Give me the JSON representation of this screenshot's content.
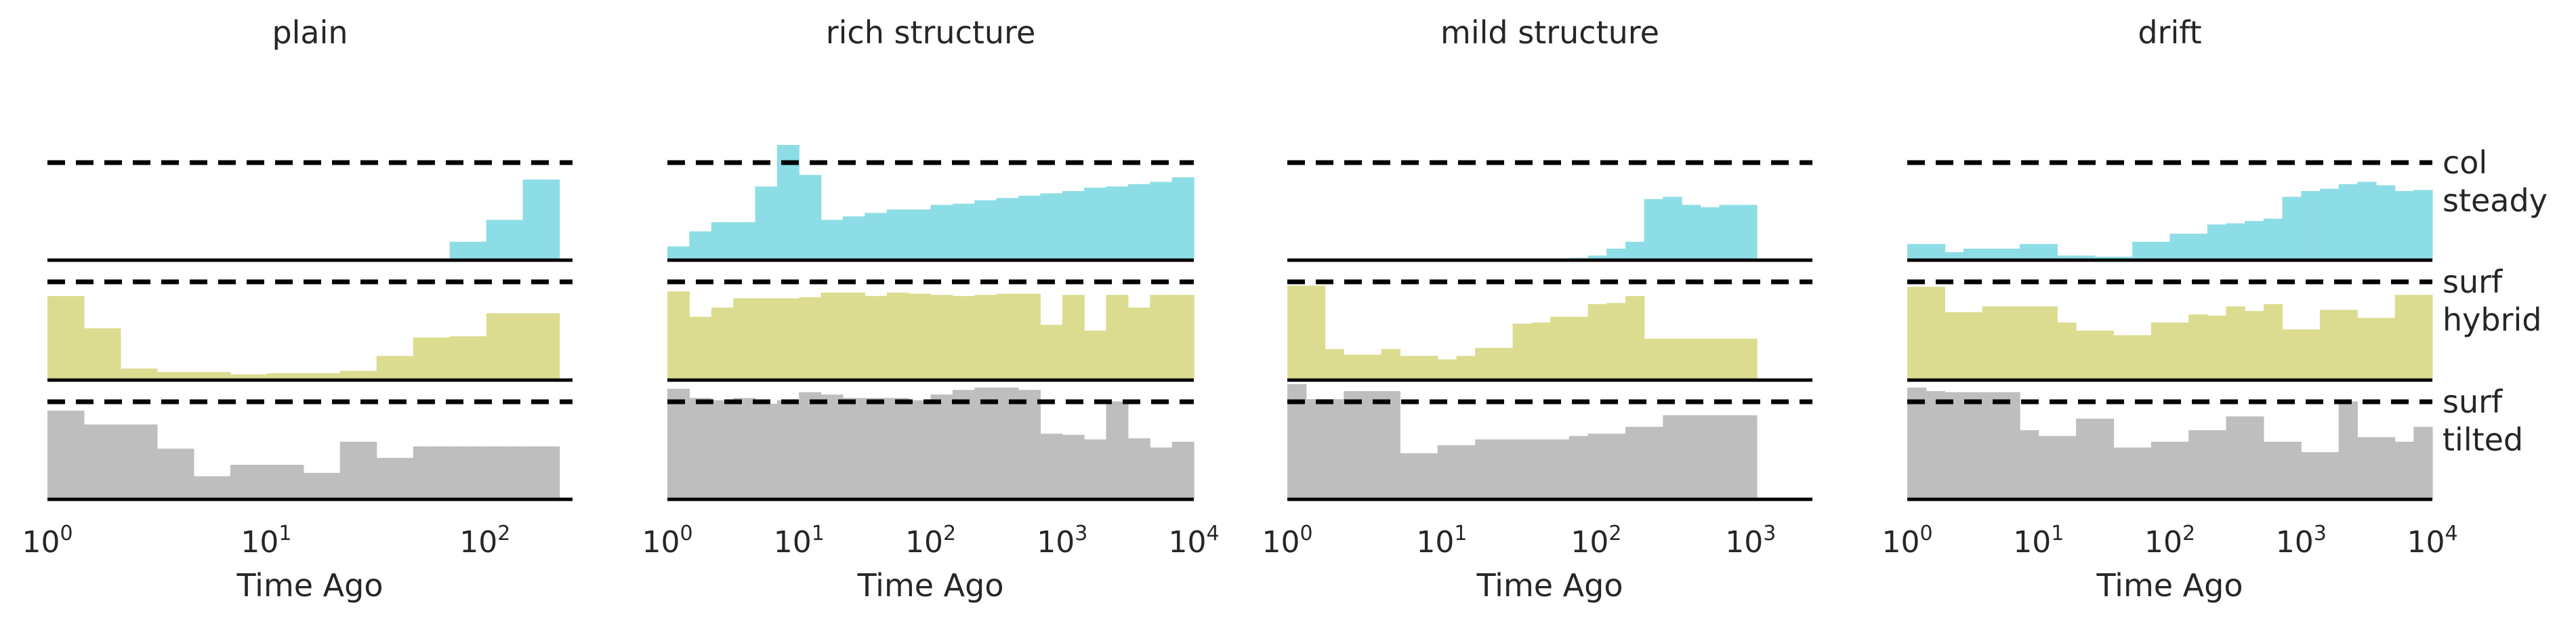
{
  "chart_data": [
    {
      "type": "histogram",
      "title": "plain",
      "xlabel": "Time Ago",
      "xscale": "log",
      "xlim_exp": [
        0,
        2.4
      ],
      "ticks": [
        {
          "base": "10",
          "exp": "0"
        },
        {
          "base": "10",
          "exp": "1"
        },
        {
          "base": "10",
          "exp": "2"
        }
      ],
      "bin_edges_exp": [
        0,
        0.3,
        0.6,
        0.9,
        1.2,
        1.5,
        1.8,
        2.1,
        2.4
      ],
      "hist_edge_exp": 2.34,
      "series": [
        {
          "name": "steady",
          "color": "#8ddde6",
          "values": [
            0,
            0,
            0,
            0,
            0,
            0,
            0,
            0,
            0,
            0,
            0,
            0,
            0,
            0,
            0,
            0,
            0,
            0,
            0,
            0,
            0,
            0,
            0.16,
            0.16,
            0.35,
            0.35,
            0.7,
            0.7
          ]
        },
        {
          "name": "hybrid",
          "color": "#dcdc90",
          "values": [
            0.73,
            0.73,
            0.45,
            0.45,
            0.1,
            0.1,
            0.07,
            0.07,
            0.07,
            0.07,
            0.05,
            0.05,
            0.06,
            0.06,
            0.06,
            0.06,
            0.08,
            0.08,
            0.21,
            0.21,
            0.37,
            0.37,
            0.38,
            0.38,
            0.58,
            0.58,
            0.58,
            0.58
          ]
        },
        {
          "name": "tilted",
          "color": "#bebebe",
          "values": [
            0.77,
            0.77,
            0.65,
            0.65,
            0.65,
            0.65,
            0.44,
            0.44,
            0.2,
            0.2,
            0.3,
            0.3,
            0.3,
            0.3,
            0.23,
            0.23,
            0.5,
            0.5,
            0.36,
            0.36,
            0.46,
            0.46,
            0.46,
            0.46,
            0.46,
            0.46,
            0.46,
            0.46
          ]
        }
      ]
    },
    {
      "type": "histogram",
      "title": "rich structure",
      "xlabel": "Time Ago",
      "xscale": "log",
      "xlim_exp": [
        0,
        4
      ],
      "ticks": [
        {
          "base": "10",
          "exp": "0"
        },
        {
          "base": "10",
          "exp": "1"
        },
        {
          "base": "10",
          "exp": "2"
        },
        {
          "base": "10",
          "exp": "3"
        },
        {
          "base": "10",
          "exp": "4"
        }
      ],
      "bin_edges_exp": [
        0,
        1,
        2,
        3,
        4
      ],
      "hist_edge_exp": 4,
      "series": [
        {
          "name": "steady",
          "color": "#8ddde6",
          "values": [
            0.12,
            0.25,
            0.33,
            0.33,
            0.64,
            1.0,
            0.74,
            0.35,
            0.38,
            0.41,
            0.44,
            0.44,
            0.48,
            0.49,
            0.52,
            0.54,
            0.56,
            0.58,
            0.6,
            0.63,
            0.64,
            0.66,
            0.68,
            0.72
          ]
        },
        {
          "name": "hybrid",
          "color": "#dcdc90",
          "values": [
            0.77,
            0.55,
            0.63,
            0.71,
            0.71,
            0.71,
            0.72,
            0.76,
            0.76,
            0.73,
            0.76,
            0.75,
            0.74,
            0.73,
            0.74,
            0.75,
            0.75,
            0.48,
            0.74,
            0.43,
            0.74,
            0.63,
            0.74,
            0.74
          ]
        },
        {
          "name": "tilted",
          "color": "#bebebe",
          "values": [
            0.96,
            0.88,
            0.86,
            0.88,
            0.83,
            0.86,
            0.93,
            0.91,
            0.88,
            0.88,
            0.88,
            0.86,
            0.91,
            0.95,
            0.97,
            0.97,
            0.95,
            0.57,
            0.56,
            0.52,
            0.85,
            0.53,
            0.45,
            0.5
          ]
        }
      ]
    },
    {
      "type": "histogram",
      "title": "mild structure",
      "xlabel": "Time Ago",
      "xscale": "log",
      "xlim_exp": [
        0,
        3.4
      ],
      "ticks": [
        {
          "base": "10",
          "exp": "0"
        },
        {
          "base": "10",
          "exp": "1"
        },
        {
          "base": "10",
          "exp": "2"
        },
        {
          "base": "10",
          "exp": "3"
        }
      ],
      "bin_edges_exp": [
        0,
        1,
        2,
        3
      ],
      "hist_edge_exp": 3.04,
      "series": [
        {
          "name": "steady",
          "color": "#8ddde6",
          "values": [
            0,
            0,
            0,
            0,
            0,
            0,
            0,
            0,
            0,
            0,
            0,
            0,
            0,
            0,
            0,
            0.02,
            0.04,
            0.1,
            0.16,
            0.53,
            0.55,
            0.48,
            0.46,
            0.48,
            0.48
          ]
        },
        {
          "name": "hybrid",
          "color": "#dcdc90",
          "values": [
            0.82,
            0.82,
            0.27,
            0.22,
            0.22,
            0.27,
            0.21,
            0.21,
            0.18,
            0.21,
            0.28,
            0.28,
            0.49,
            0.5,
            0.55,
            0.55,
            0.66,
            0.67,
            0.73,
            0.36,
            0.36,
            0.36,
            0.36,
            0.36,
            0.36
          ]
        },
        {
          "name": "tilted",
          "color": "#bebebe",
          "values": [
            1.0,
            0.87,
            0.87,
            0.94,
            0.94,
            0.94,
            0.4,
            0.4,
            0.47,
            0.47,
            0.52,
            0.52,
            0.52,
            0.52,
            0.52,
            0.55,
            0.57,
            0.57,
            0.63,
            0.63,
            0.73,
            0.73,
            0.73,
            0.73,
            0.73
          ]
        }
      ]
    },
    {
      "type": "histogram",
      "title": "drift",
      "xlabel": "Time Ago",
      "xscale": "log",
      "xlim_exp": [
        0,
        4
      ],
      "ticks": [
        {
          "base": "10",
          "exp": "0"
        },
        {
          "base": "10",
          "exp": "1"
        },
        {
          "base": "10",
          "exp": "2"
        },
        {
          "base": "10",
          "exp": "3"
        },
        {
          "base": "10",
          "exp": "4"
        }
      ],
      "bin_edges_exp": [
        0,
        1,
        2,
        3,
        4
      ],
      "hist_edge_exp": 4,
      "series": [
        {
          "name": "steady",
          "color": "#8ddde6",
          "values": [
            0.14,
            0.14,
            0.07,
            0.1,
            0.1,
            0.1,
            0.14,
            0.14,
            0.04,
            0.04,
            0.03,
            0.03,
            0.16,
            0.16,
            0.23,
            0.23,
            0.31,
            0.32,
            0.34,
            0.36,
            0.55,
            0.6,
            0.62,
            0.66,
            0.68,
            0.65,
            0.6,
            0.61
          ]
        },
        {
          "name": "hybrid",
          "color": "#dcdc90",
          "values": [
            0.81,
            0.81,
            0.59,
            0.59,
            0.64,
            0.64,
            0.64,
            0.64,
            0.5,
            0.43,
            0.43,
            0.39,
            0.39,
            0.5,
            0.5,
            0.57,
            0.56,
            0.64,
            0.6,
            0.66,
            0.44,
            0.44,
            0.61,
            0.61,
            0.54,
            0.54,
            0.74,
            0.74
          ]
        },
        {
          "name": "tilted",
          "color": "#bebebe",
          "values": [
            0.97,
            0.94,
            0.93,
            0.93,
            0.93,
            0.93,
            0.6,
            0.55,
            0.55,
            0.7,
            0.7,
            0.45,
            0.45,
            0.5,
            0.5,
            0.6,
            0.6,
            0.72,
            0.72,
            0.5,
            0.5,
            0.41,
            0.41,
            0.85,
            0.54,
            0.54,
            0.5,
            0.63
          ]
        }
      ]
    }
  ],
  "row_labels": [
    {
      "upper": "col",
      "lower": "steady"
    },
    {
      "upper": "surf",
      "lower": "hybrid"
    },
    {
      "upper": "surf",
      "lower": "tilted"
    }
  ]
}
